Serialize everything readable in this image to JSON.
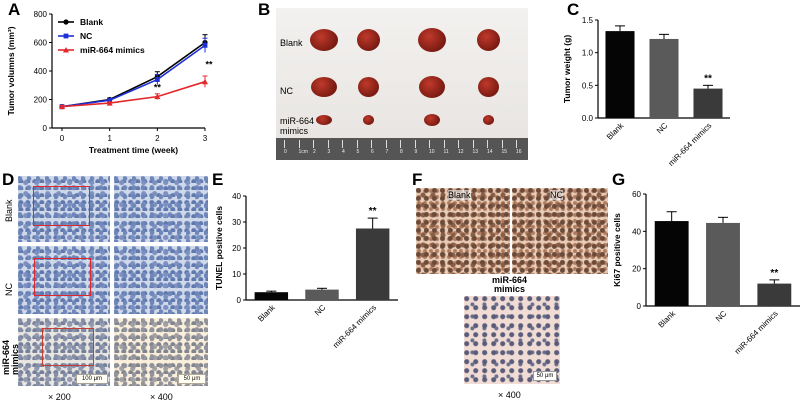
{
  "panels": {
    "A": "A",
    "B": "B",
    "C": "C",
    "D": "D",
    "E": "E",
    "F": "F",
    "G": "G"
  },
  "colors": {
    "blank": "#000000",
    "nc": "#1f2fd6",
    "mimics": "#e3272b",
    "bar_blank": "#050505",
    "bar_nc": "#5a5a5a",
    "bar_mimics": "#3a3a3a",
    "ihc_box": "#e0282c"
  },
  "chart_data": [
    {
      "id": "A",
      "type": "line",
      "xlabel": "Treatment time (week)",
      "ylabel": "Tumor volumns (mm³)",
      "x": [
        0,
        1,
        2,
        3
      ],
      "xlim": [
        0,
        3
      ],
      "ylim": [
        0,
        800
      ],
      "xticks": [
        "0",
        "1",
        "2",
        "3"
      ],
      "yticks": [
        "0",
        "200",
        "400",
        "600",
        "800"
      ],
      "series": [
        {
          "name": "Blank",
          "values": [
            150,
            200,
            360,
            600
          ],
          "errors": [
            8,
            10,
            35,
            55
          ]
        },
        {
          "name": "NC",
          "values": [
            150,
            195,
            340,
            580
          ],
          "errors": [
            8,
            10,
            35,
            50
          ]
        },
        {
          "name": "miR-664 mimics",
          "values": [
            150,
            175,
            220,
            325
          ],
          "errors": [
            8,
            8,
            20,
            40
          ]
        }
      ],
      "annotations": [
        "**",
        "**"
      ]
    },
    {
      "id": "C",
      "type": "bar",
      "ylabel": "Tumor weight (g)",
      "categories": [
        "Blank",
        "NC",
        "miR-664 mimics"
      ],
      "values": [
        1.33,
        1.21,
        0.45
      ],
      "errors": [
        0.08,
        0.07,
        0.05
      ],
      "ylim": [
        0,
        1.5
      ],
      "yticks": [
        "0.0",
        "0.5",
        "1.0",
        "1.5"
      ],
      "annotations": [
        "",
        "",
        "**"
      ]
    },
    {
      "id": "E",
      "type": "bar",
      "ylabel": "TUNEL positive cells",
      "categories": [
        "Blank",
        "NC",
        "miR-664 mimics"
      ],
      "values": [
        3,
        4,
        27.5
      ],
      "errors": [
        0.4,
        0.5,
        4
      ],
      "ylim": [
        0,
        40
      ],
      "yticks": [
        "0",
        "10",
        "20",
        "30",
        "40"
      ],
      "annotations": [
        "",
        "",
        "**"
      ]
    },
    {
      "id": "G",
      "type": "bar",
      "ylabel": "Ki67 positive cells",
      "categories": [
        "Blank",
        "NC",
        "miR-664 mimics"
      ],
      "values": [
        45.5,
        44.5,
        12
      ],
      "errors": [
        5,
        3,
        2
      ],
      "ylim": [
        0,
        60
      ],
      "yticks": [
        "0",
        "20",
        "40",
        "60"
      ],
      "annotations": [
        "",
        "",
        "**"
      ]
    }
  ],
  "panel_b": {
    "rows": [
      "Blank",
      "NC",
      "miR-664\nmimics"
    ],
    "ruler_marks": [
      "0",
      "1cm",
      "2",
      "3",
      "4",
      "5",
      "6",
      "7",
      "8",
      "9",
      "10",
      "11",
      "12",
      "13",
      "14",
      "15",
      "16"
    ]
  },
  "panel_d": {
    "rows": [
      "Blank",
      "NC",
      "miR-664\nmimics"
    ],
    "mag_low": "× 200",
    "mag_high": "× 400",
    "scale_low": "100 μm",
    "scale_high": "50 μm"
  },
  "panel_f": {
    "labels": [
      "Blank",
      "NC",
      "miR-664\nmimics"
    ],
    "mag": "× 400",
    "scale": "50 μm"
  }
}
